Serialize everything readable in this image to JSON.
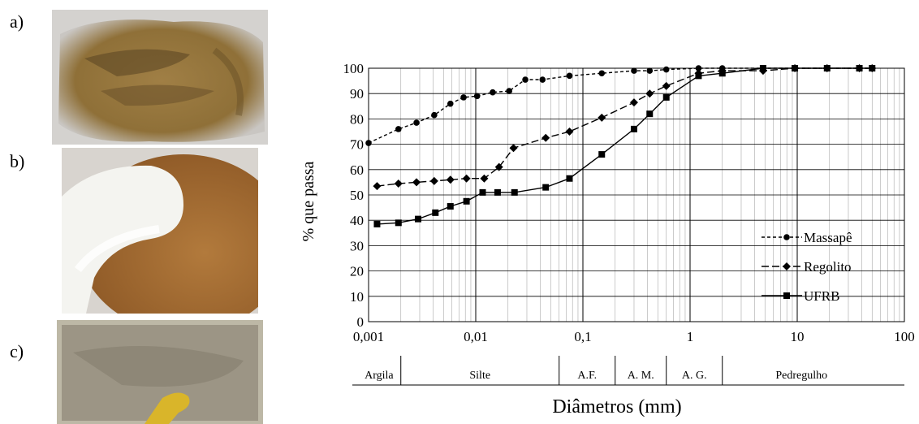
{
  "panels": {
    "a": "a)",
    "b": "b)",
    "c": "c)"
  },
  "photos": {
    "a": {
      "colors": [
        "#a07f45",
        "#7a5f30",
        "#5e4824",
        "#c9c6c2"
      ]
    },
    "b": {
      "colors": [
        "#b27a3c",
        "#9a652e",
        "#f4f4f0",
        "#d8d4cf"
      ]
    },
    "c": {
      "colors": [
        "#9c9585",
        "#857e6e",
        "#d9b52a",
        "#bdb8a6"
      ]
    }
  },
  "chart_data": {
    "type": "line",
    "xscale": "log",
    "xlim": [
      0.001,
      100
    ],
    "ylim": [
      0,
      100
    ],
    "xticks": [
      "0,001",
      "0,01",
      "0,1",
      "1",
      "10",
      "100"
    ],
    "yticks": [
      "0",
      "10",
      "20",
      "30",
      "40",
      "50",
      "60",
      "70",
      "80",
      "90",
      "100"
    ],
    "ylabel": "% que passa",
    "xlabel": "Diâmetros (mm)",
    "grid": true,
    "legend_position": "bottom-right",
    "size_classes": [
      {
        "label": "Argila",
        "from": 0.001,
        "to": 0.002
      },
      {
        "label": "Silte",
        "from": 0.002,
        "to": 0.06
      },
      {
        "label": "A.F.",
        "from": 0.06,
        "to": 0.2
      },
      {
        "label": "A. M.",
        "from": 0.2,
        "to": 0.6
      },
      {
        "label": "A. G.",
        "from": 0.6,
        "to": 2
      },
      {
        "label": "Pedregulho",
        "from": 2,
        "to": 60
      }
    ],
    "series": [
      {
        "name": "Massapê",
        "marker": "circle",
        "dash": "4,3",
        "x": [
          0.001,
          0.0019,
          0.0028,
          0.0041,
          0.0058,
          0.0077,
          0.0103,
          0.0144,
          0.0205,
          0.029,
          0.042,
          0.075,
          0.15,
          0.3,
          0.42,
          0.6,
          1.2,
          2.0,
          4.8,
          9.5,
          19,
          38,
          50
        ],
        "y": [
          70.5,
          76,
          78.5,
          81.5,
          86,
          88.5,
          89,
          90.5,
          91,
          95.5,
          95.5,
          97,
          98,
          99,
          99,
          99.5,
          100,
          100,
          100,
          100,
          100,
          100,
          100
        ]
      },
      {
        "name": "Regolito",
        "marker": "diamond",
        "dash": "9,4",
        "x": [
          0.0012,
          0.0019,
          0.0028,
          0.0041,
          0.0058,
          0.0082,
          0.012,
          0.0165,
          0.0225,
          0.045,
          0.075,
          0.15,
          0.3,
          0.42,
          0.6,
          1.2,
          2.0,
          4.8,
          9.5,
          19,
          38,
          50
        ],
        "y": [
          53.5,
          54.5,
          55,
          55.5,
          56,
          56.5,
          56.5,
          61,
          68.5,
          72.5,
          75,
          80.5,
          86.5,
          90,
          93,
          98,
          99,
          99,
          100,
          100,
          100,
          100
        ]
      },
      {
        "name": "UFRB",
        "marker": "square",
        "dash": "",
        "x": [
          0.0012,
          0.0019,
          0.0029,
          0.0042,
          0.0058,
          0.0082,
          0.0116,
          0.016,
          0.023,
          0.045,
          0.075,
          0.15,
          0.3,
          0.42,
          0.6,
          1.2,
          2.0,
          4.8,
          9.5,
          19,
          38,
          50
        ],
        "y": [
          38.5,
          39,
          40.5,
          43,
          45.5,
          47.5,
          51,
          51,
          51,
          53,
          56.5,
          66,
          76,
          82,
          88.5,
          97,
          98,
          100,
          100,
          100,
          100,
          100
        ]
      }
    ]
  }
}
